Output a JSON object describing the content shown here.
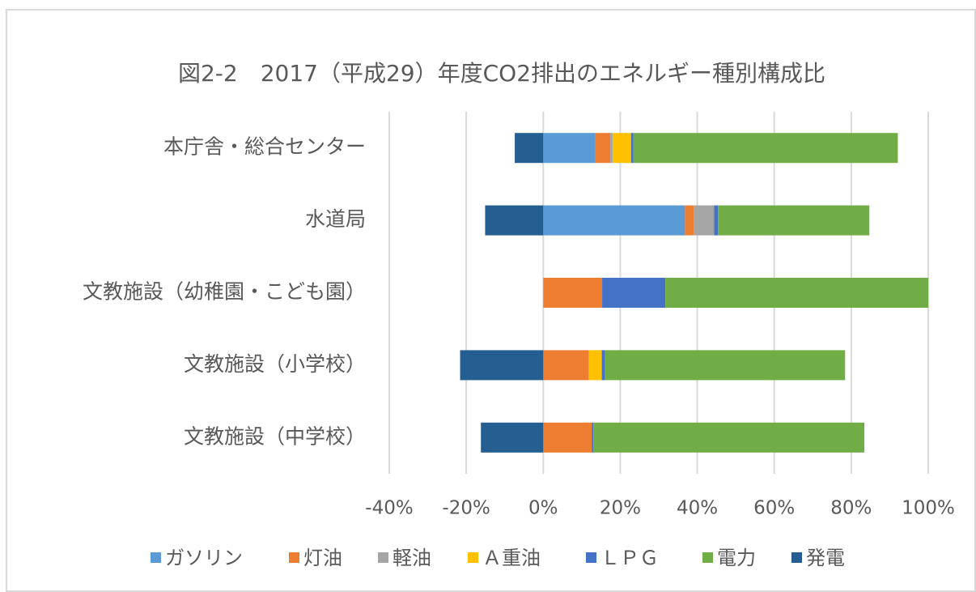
{
  "chart_data": {
    "type": "stacked_barh",
    "title": "図2-2　2017（平成29）年度CO2排出のエネルギー種別構成比",
    "categories": [
      "本庁舎・総合センター",
      "水道局",
      "文教施設（幼稚園・こども園）",
      "文教施設（小学校）",
      "文教施設（中学校）"
    ],
    "series": [
      {
        "name": "ガソリン",
        "color": "#5b9bd5",
        "values": [
          13.4,
          36.8,
          0,
          0,
          0
        ]
      },
      {
        "name": "灯油",
        "color": "#ed7d31",
        "values": [
          4.0,
          2.3,
          15.3,
          11.8,
          12.6
        ]
      },
      {
        "name": "軽油",
        "color": "#a5a5a5",
        "values": [
          0.6,
          5.3,
          0,
          0,
          0
        ]
      },
      {
        "name": "Ａ重油",
        "color": "#ffc000",
        "values": [
          4.8,
          0,
          0,
          3.4,
          0
        ]
      },
      {
        "name": "ＬＰＧ",
        "color": "#4472c4",
        "values": [
          0.6,
          1.0,
          16.4,
          0.8,
          0.4
        ]
      },
      {
        "name": "電力",
        "color": "#70ad47",
        "values": [
          68.7,
          39.3,
          68.3,
          62.4,
          70.4
        ]
      },
      {
        "name": "発電",
        "color": "#255e91",
        "values": [
          -7.4,
          -15.1,
          0,
          -21.6,
          -16.2
        ]
      }
    ],
    "xlim": [
      -40,
      100
    ],
    "xticks": [
      {
        "value": -40,
        "label": "-40%"
      },
      {
        "value": -20,
        "label": "-20%"
      },
      {
        "value": 0,
        "label": "0%"
      },
      {
        "value": 20,
        "label": "20%"
      },
      {
        "value": 40,
        "label": "40%"
      },
      {
        "value": 60,
        "label": "60%"
      },
      {
        "value": 80,
        "label": "80%"
      },
      {
        "value": 100,
        "label": "100%"
      }
    ],
    "grid": true,
    "legend": "bottom"
  }
}
